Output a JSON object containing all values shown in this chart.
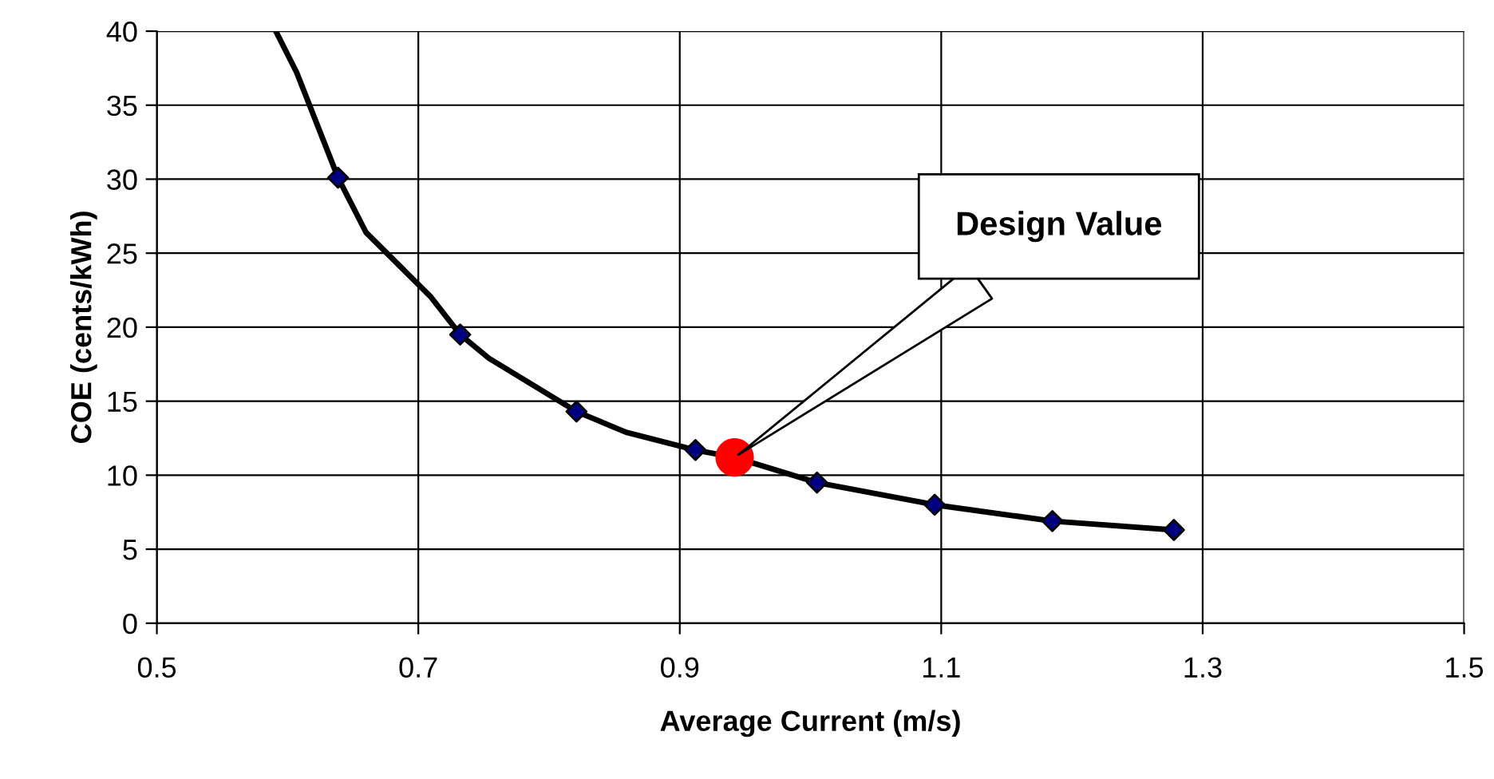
{
  "chart_data": {
    "type": "line",
    "xlabel": "Average Current (m/s)",
    "ylabel": "COE (cents/kWh)",
    "xlim": [
      0.5,
      1.5
    ],
    "ylim": [
      0,
      40
    ],
    "xticks": [
      0.5,
      0.7,
      0.9,
      1.1,
      1.3,
      1.5
    ],
    "yticks": [
      0,
      5,
      10,
      15,
      20,
      25,
      30,
      35,
      40
    ],
    "grid": true,
    "legend": false,
    "series": [
      {
        "color": "#000000",
        "marker": "none",
        "line_style": "solid",
        "x": [
          0.591,
          0.607,
          0.6386,
          0.66,
          0.709,
          0.732,
          0.754,
          0.821,
          0.859,
          0.912,
          0.942,
          1.005,
          1.095,
          1.185,
          1.278
        ],
        "values": [
          40,
          37.2,
          30.1,
          26.4,
          22.1,
          19.5,
          17.9,
          14.3,
          12.9,
          11.7,
          11.2,
          9.5,
          8.0,
          6.9,
          6.3
        ]
      },
      {
        "type": "scatter",
        "color": "#000080",
        "marker": "diamond",
        "x": [
          0.6386,
          0.732,
          0.821,
          0.912,
          1.005,
          1.095,
          1.185,
          1.278
        ],
        "values": [
          30.1,
          19.5,
          14.3,
          11.7,
          9.5,
          8.0,
          6.9,
          6.3
        ]
      },
      {
        "type": "scatter",
        "color": "#ff0000",
        "marker": "circle",
        "x": [
          0.942
        ],
        "values": [
          11.2
        ]
      }
    ],
    "annotations": [
      "Design Value"
    ]
  }
}
